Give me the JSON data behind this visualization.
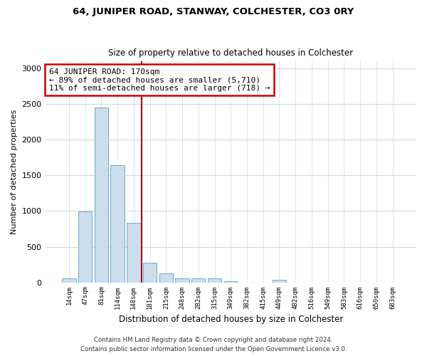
{
  "title": "64, JUNIPER ROAD, STANWAY, COLCHESTER, CO3 0RY",
  "subtitle": "Size of property relative to detached houses in Colchester",
  "xlabel": "Distribution of detached houses by size in Colchester",
  "ylabel": "Number of detached properties",
  "bar_labels": [
    "14sqm",
    "47sqm",
    "81sqm",
    "114sqm",
    "148sqm",
    "181sqm",
    "215sqm",
    "248sqm",
    "282sqm",
    "315sqm",
    "349sqm",
    "382sqm",
    "415sqm",
    "449sqm",
    "482sqm",
    "516sqm",
    "549sqm",
    "583sqm",
    "616sqm",
    "650sqm",
    "683sqm"
  ],
  "bar_values": [
    55,
    990,
    2450,
    1640,
    830,
    280,
    130,
    55,
    60,
    55,
    20,
    0,
    0,
    35,
    0,
    0,
    0,
    0,
    0,
    0,
    0
  ],
  "bar_color": "#ccdded",
  "bar_edge_color": "#6aaacf",
  "vline_x_index": 5.0,
  "vline_color": "#aa0000",
  "ylim": [
    0,
    3100
  ],
  "yticks": [
    0,
    500,
    1000,
    1500,
    2000,
    2500,
    3000
  ],
  "annotation_text": "64 JUNIPER ROAD: 170sqm\n← 89% of detached houses are smaller (5,710)\n11% of semi-detached houses are larger (718) →",
  "annotation_box_edgecolor": "#cc0000",
  "footer_line1": "Contains HM Land Registry data © Crown copyright and database right 2024.",
  "footer_line2": "Contains public sector information licensed under the Open Government Licence v3.0.",
  "bg_color": "#ffffff",
  "grid_color": "#d0d8e0"
}
